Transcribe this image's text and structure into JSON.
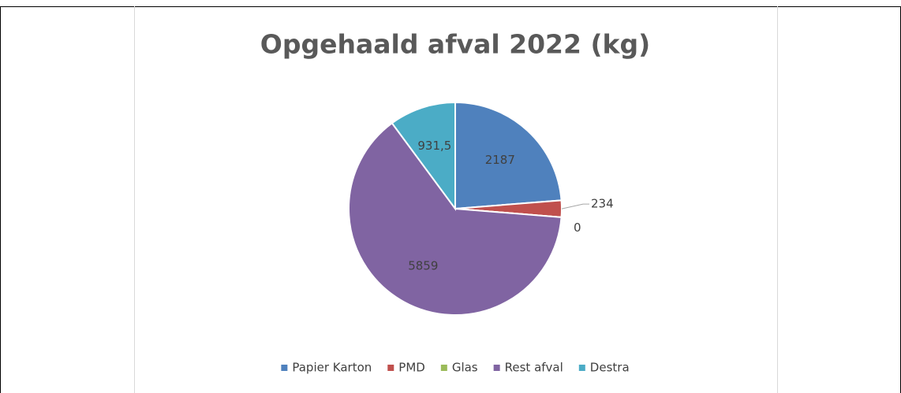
{
  "chart_data": {
    "type": "pie",
    "title": "Opgehaald afval 2022 (kg)",
    "categories": [
      "Papier Karton",
      "PMD",
      "Glas",
      "Rest afval",
      "Destra"
    ],
    "values": [
      2187,
      234,
      0,
      5859,
      931.5
    ],
    "value_labels": [
      "2187",
      "234",
      "0",
      "5859",
      "931,5"
    ],
    "colors": [
      "#4f81bd",
      "#c0504d",
      "#9bbb59",
      "#8064a2",
      "#4bacc6"
    ],
    "legend": "bottom"
  }
}
